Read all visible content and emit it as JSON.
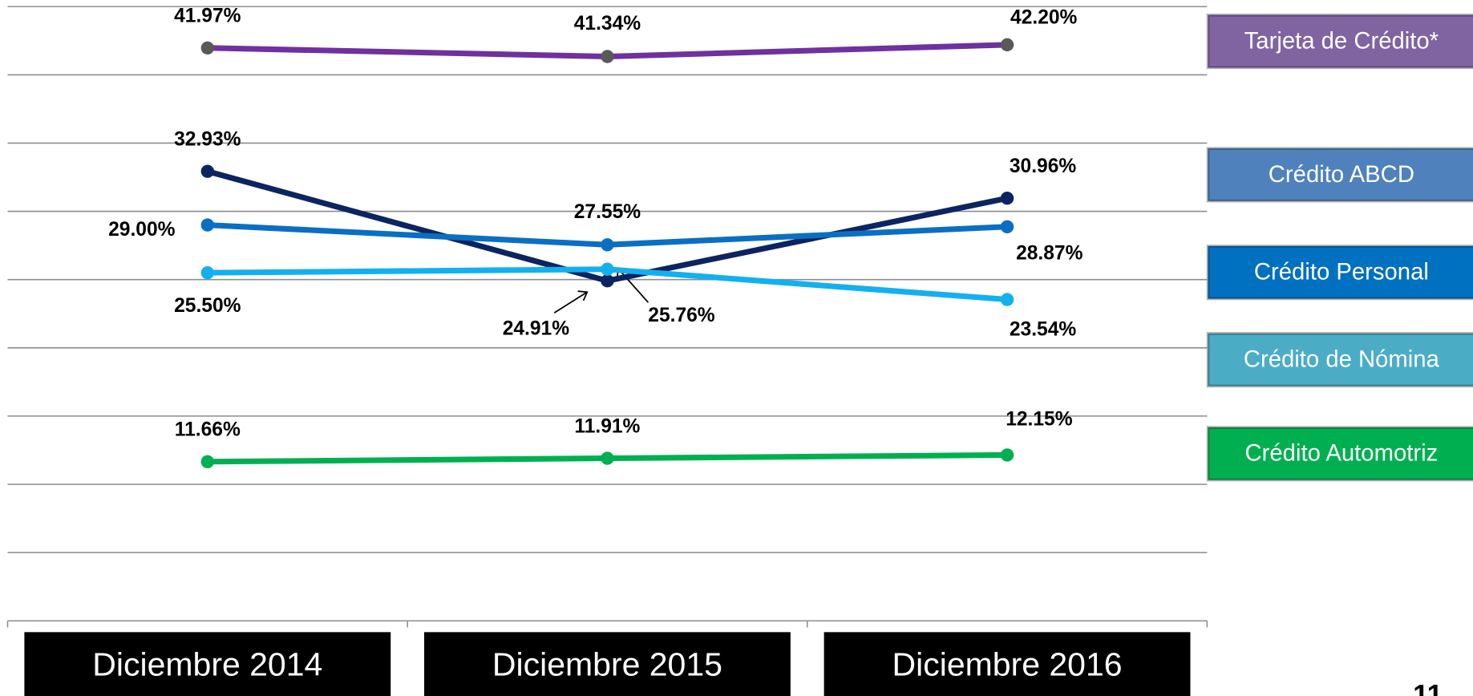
{
  "chart_data": {
    "type": "line",
    "categories": [
      "Diciembre 2014",
      "Diciembre 2015",
      "Diciembre 2016"
    ],
    "series": [
      {
        "name": "Tarjeta de Crédito*",
        "color": "#7030a0",
        "marker_color": "#595959",
        "legend_color": "#8064a2",
        "values": [
          41.97,
          41.34,
          42.2
        ],
        "value_labels": [
          "41.97%",
          "41.34%",
          "42.20%"
        ]
      },
      {
        "name": "Crédito ABCD",
        "color": "#0c2461",
        "marker_color": "#0c2461",
        "legend_color": "#4f81bd",
        "values": [
          32.93,
          24.91,
          30.96
        ],
        "value_labels": [
          "32.93%",
          "24.91%",
          "30.96%"
        ]
      },
      {
        "name": "Crédito Personal",
        "color": "#0a6fc2",
        "marker_color": "#0a6fc2",
        "legend_color": "#0070c0",
        "values": [
          29.0,
          27.55,
          28.87
        ],
        "value_labels": [
          "29.00%",
          "27.55%",
          "28.87%"
        ]
      },
      {
        "name": "Crédito de Nómina",
        "color": "#13b0ef",
        "marker_color": "#13b0ef",
        "legend_color": "#4bacc6",
        "values": [
          25.5,
          25.76,
          23.54
        ],
        "value_labels": [
          "25.50%",
          "25.76%",
          "23.54%"
        ]
      },
      {
        "name": "Crédito Automotriz",
        "color": "#00b050",
        "marker_color": "#00b050",
        "legend_color": "#00b050",
        "values": [
          11.66,
          11.91,
          12.15
        ],
        "value_labels": [
          "11.66%",
          "11.91%",
          "12.15%"
        ]
      }
    ],
    "ylim": [
      0,
      45
    ],
    "yticks": [
      0,
      5,
      10,
      15,
      20,
      25,
      30,
      35,
      40,
      45
    ],
    "grid": true
  },
  "page_number": "11"
}
